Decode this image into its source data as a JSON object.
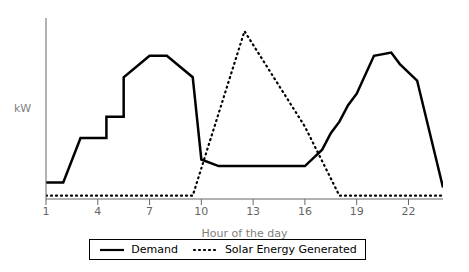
{
  "chart_data": {
    "type": "line",
    "xlabel": "Hour of the day",
    "ylabel": "kW",
    "xlim": [
      1,
      24
    ],
    "xticks": [
      1,
      4,
      7,
      10,
      13,
      16,
      19,
      22
    ],
    "ylim": [
      -0.02,
      1.08
    ],
    "grid": false,
    "legend": "bottom",
    "tick_labels": "x",
    "series": [
      {
        "name": "Demand",
        "color": "#000000",
        "line_style": "solid",
        "x": [
          1,
          2,
          3,
          4.5,
          4.5,
          5.5,
          5.5,
          7,
          8,
          9.5,
          10,
          11,
          16,
          17,
          17.5,
          18,
          18.5,
          19,
          20,
          21,
          21.5,
          22.5,
          24
        ],
        "values": [
          0.08,
          0.08,
          0.35,
          0.35,
          0.48,
          0.48,
          0.72,
          0.85,
          0.85,
          0.72,
          0.22,
          0.18,
          0.18,
          0.28,
          0.38,
          0.45,
          0.55,
          0.62,
          0.85,
          0.87,
          0.8,
          0.7,
          0.05
        ]
      },
      {
        "name": "Solar Energy Generated",
        "color": "#000000",
        "line_style": "dotted",
        "x": [
          1,
          9,
          9.5,
          12.5,
          16,
          18,
          19,
          24
        ],
        "values": [
          0.0,
          0.0,
          0.0,
          1.0,
          0.42,
          0.0,
          0.0,
          0.0
        ]
      }
    ]
  }
}
